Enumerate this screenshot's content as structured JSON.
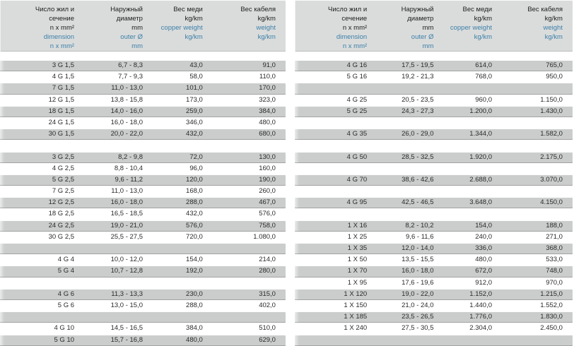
{
  "colors": {
    "accent_blue": "#3d80a8",
    "row_gray": "#cbcdcd",
    "header_gray": "#dadcdc",
    "text_dark": "#2a2a2a"
  },
  "header": {
    "columns": [
      {
        "key": "dimension",
        "ru": [
          "Число жил и",
          "сечение",
          "n x mm²"
        ],
        "en": [
          "dimension",
          "n x mm²"
        ]
      },
      {
        "key": "outer-diameter",
        "ru": [
          "Наружный",
          "диаметр",
          "mm"
        ],
        "en": [
          "outer Ø",
          "mm"
        ]
      },
      {
        "key": "copper-weight",
        "ru": [
          "Вес меди",
          "kg/km"
        ],
        "en": [
          "copper weight",
          "kg/km"
        ]
      },
      {
        "key": "cable-weight",
        "ru": [
          "Вес кабеля",
          "kg/km"
        ],
        "en": [
          "weight",
          "kg/km"
        ]
      }
    ]
  },
  "left_table": {
    "rows": [
      [
        "3 G 1,5",
        "6,7 - 8,3",
        "43,0",
        "91,0"
      ],
      [
        "4 G 1,5",
        "7,7 - 9,3",
        "58,0",
        "110,0"
      ],
      [
        "7 G 1,5",
        "11,0 - 13,0",
        "101,0",
        "170,0"
      ],
      [
        "12 G 1,5",
        "13,8 - 15,8",
        "173,0",
        "323,0"
      ],
      [
        "18 G 1,5",
        "14,0 - 16,0",
        "259,0",
        "384,0"
      ],
      [
        "24 G 1,5",
        "16,0 - 18,0",
        "346,0",
        "480,0"
      ],
      [
        "30 G 1,5",
        "20,0 - 22,0",
        "432,0",
        "680,0"
      ],
      [],
      [
        "3 G 2,5",
        "8,2 - 9,8",
        "72,0",
        "130,0"
      ],
      [
        "4 G 2,5",
        "8,8 - 10,4",
        "96,0",
        "160,0"
      ],
      [
        "5 G 2,5",
        "9,6 - 11,2",
        "120,0",
        "190,0"
      ],
      [
        "7 G 2,5",
        "11,0 - 13,0",
        "168,0",
        "260,0"
      ],
      [
        "12 G 2,5",
        "16,0 - 18,0",
        "288,0",
        "467,0"
      ],
      [
        "18 G 2,5",
        "16,5 - 18,5",
        "432,0",
        "576,0"
      ],
      [
        "24 G 2,5",
        "19,0 - 21,0",
        "576,0",
        "758,0"
      ],
      [
        "30 G 2,5",
        "25,5 - 27,5",
        "720,0",
        "1.080,0"
      ],
      [],
      [
        "4 G 4",
        "10,0 - 12,0",
        "154,0",
        "214,0"
      ],
      [
        "5 G 4",
        "10,7 - 12,8",
        "192,0",
        "280,0"
      ],
      [],
      [
        "4 G 6",
        "11,3 - 13,3",
        "230,0",
        "315,0"
      ],
      [
        "5 G 6",
        "13,0 - 15,0",
        "288,0",
        "402,0"
      ],
      [],
      [
        "4 G 10",
        "14,5 - 16,5",
        "384,0",
        "510,0"
      ],
      [
        "5 G 10",
        "15,7 - 16,8",
        "480,0",
        "629,0"
      ]
    ]
  },
  "right_table": {
    "rows": [
      [
        "4 G 16",
        "17,5 - 19,5",
        "614,0",
        "765,0"
      ],
      [
        "5 G 16",
        "19,2 - 21,3",
        "768,0",
        "950,0"
      ],
      [],
      [
        "4 G 25",
        "20,5 - 23,5",
        "960,0",
        "1.150,0"
      ],
      [
        "5 G 25",
        "24,3 - 27,3",
        "1.200,0",
        "1.430,0"
      ],
      [],
      [
        "4 G 35",
        "26,0 - 29,0",
        "1.344,0",
        "1.582,0"
      ],
      [],
      [
        "4 G 50",
        "28,5 - 32,5",
        "1.920,0",
        "2.175,0"
      ],
      [],
      [
        "4 G 70",
        "38,6 - 42,6",
        "2.688,0",
        "3.070,0"
      ],
      [],
      [
        "4 G 95",
        "42,5 - 46,5",
        "3.648,0",
        "4.150,0"
      ],
      [],
      [
        "1 X 16",
        "8,2 - 10,2",
        "154,0",
        "188,0"
      ],
      [
        "1 X 25",
        "9,6 - 11,6",
        "240,0",
        "271,0"
      ],
      [
        "1 X 35",
        "12,0 - 14,0",
        "336,0",
        "368,0"
      ],
      [
        "1 X 50",
        "13,5 - 15,5",
        "480,0",
        "533,0"
      ],
      [
        "1 X 70",
        "16,0 - 18,0",
        "672,0",
        "748,0"
      ],
      [
        "1 X 95",
        "17,6 - 19,6",
        "912,0",
        "970,0"
      ],
      [
        "1 X 120",
        "19,0 - 22,0",
        "1.152,0",
        "1.215,0"
      ],
      [
        "1 X 150",
        "21,0 - 24,0",
        "1.440,0",
        "1.552,0"
      ],
      [
        "1 X 185",
        "23,5 - 26,5",
        "1.776,0",
        "1.830,0"
      ],
      [
        "1 X 240",
        "27,5 - 30,5",
        "2.304,0",
        "2.450,0"
      ],
      []
    ]
  }
}
